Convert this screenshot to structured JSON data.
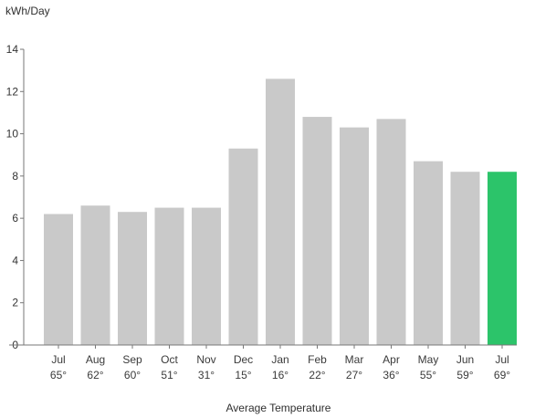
{
  "chart_data": {
    "type": "bar",
    "ylabel": "kWh/Day",
    "xlabel": "Average Temperature",
    "ylim": [
      0,
      14
    ],
    "yticks": [
      0,
      2,
      4,
      6,
      8,
      10,
      12,
      14
    ],
    "grid": false,
    "categories": [
      "Jul",
      "Aug",
      "Sep",
      "Oct",
      "Nov",
      "Dec",
      "Jan",
      "Feb",
      "Mar",
      "Apr",
      "May",
      "Jun",
      "Jul"
    ],
    "temperatures": [
      "65°",
      "62°",
      "60°",
      "51°",
      "31°",
      "15°",
      "16°",
      "22°",
      "27°",
      "36°",
      "55°",
      "59°",
      "69°"
    ],
    "values": [
      6.2,
      6.6,
      6.3,
      6.5,
      6.5,
      9.3,
      12.6,
      10.8,
      10.3,
      10.7,
      8.7,
      8.2,
      8.2
    ],
    "colors": {
      "bar": "#c9c9c9",
      "highlight": "#2cc46a",
      "axis": "#777777"
    },
    "highlight_index": 12
  }
}
